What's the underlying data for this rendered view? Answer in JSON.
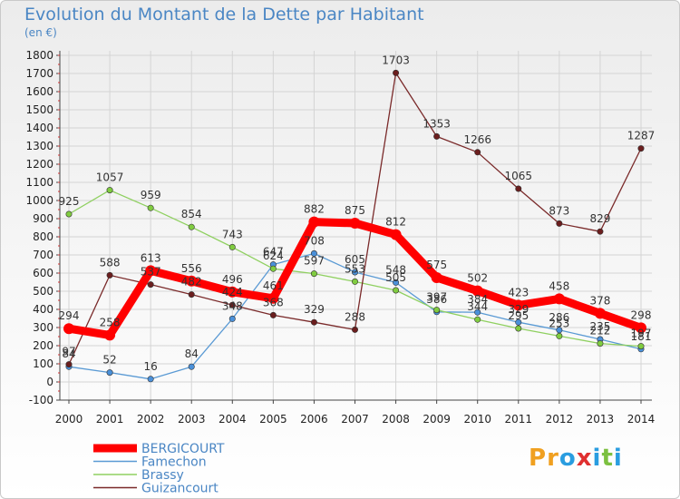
{
  "title": "Evolution du Montant de la Dette par Habitant",
  "subtitle": "(en €)",
  "logo": {
    "text": "Proxiti",
    "colors": [
      "#f0a020",
      "#f0a020",
      "#2a9de0",
      "#e03030",
      "#2a9de0",
      "#7cc040",
      "#2a9de0"
    ]
  },
  "chart_data": {
    "type": "line",
    "title": "Evolution du Montant de la Dette par Habitant",
    "ylabel": "(en €)",
    "xlabel": "",
    "ylim": [
      -100,
      1800
    ],
    "yticks": [
      -100,
      0,
      100,
      200,
      300,
      400,
      500,
      600,
      700,
      800,
      900,
      1000,
      1100,
      1200,
      1300,
      1400,
      1500,
      1600,
      1700,
      1800
    ],
    "categories": [
      "2000",
      "2001",
      "2002",
      "2003",
      "2004",
      "2005",
      "2006",
      "2007",
      "2008",
      "2009",
      "2010",
      "2011",
      "2012",
      "2013",
      "2014"
    ],
    "legend_position": "bottom-left",
    "series": [
      {
        "name": "Famechon",
        "color": "#5a9ad4",
        "dot": "#4a90d9",
        "values": [
          84,
          52,
          16,
          84,
          348,
          647,
          708,
          605,
          548,
          386,
          384,
          329,
          286,
          235,
          181
        ]
      },
      {
        "name": "Brassy",
        "color": "#8fd060",
        "dot": "#80cc40",
        "values": [
          925,
          1057,
          959,
          854,
          743,
          624,
          597,
          553,
          505,
          397,
          344,
          295,
          253,
          212,
          197
        ]
      },
      {
        "name": "Guizancourt",
        "color": "#7a2a2a",
        "dot": "#6b1e1e",
        "values": [
          97,
          588,
          537,
          482,
          424,
          368,
          329,
          288,
          1703,
          1353,
          1266,
          1065,
          873,
          829,
          1287
        ]
      },
      {
        "name": "BERGICOURT",
        "color": "#ff0000",
        "dot": "#ff0000",
        "thick": true,
        "values": [
          294,
          258,
          613,
          556,
          496,
          461,
          882,
          875,
          812,
          575,
          502,
          423,
          458,
          378,
          298
        ]
      }
    ]
  }
}
